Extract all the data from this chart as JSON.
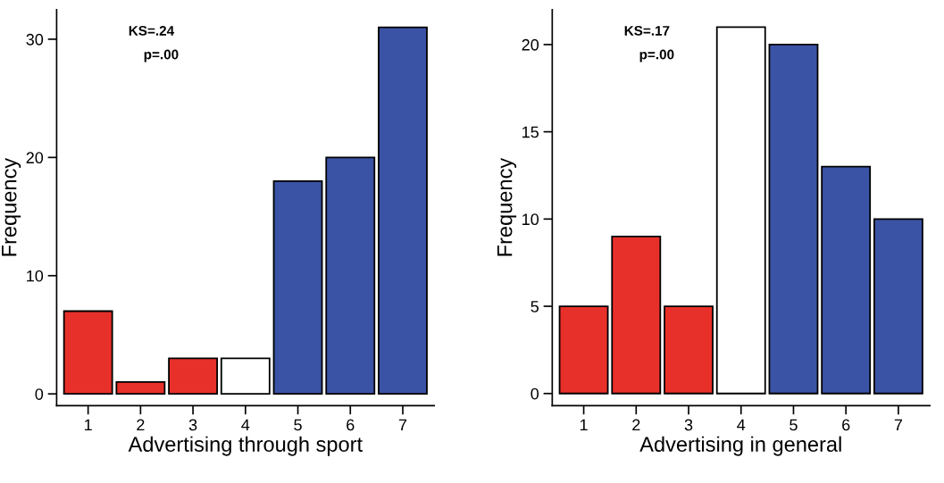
{
  "chart_data": [
    {
      "type": "bar",
      "xlabel": "Advertising through sport",
      "ylabel": "Frequency",
      "categories": [
        "1",
        "2",
        "3",
        "4",
        "5",
        "6",
        "7"
      ],
      "values": [
        7,
        1,
        3,
        3,
        18,
        20,
        31
      ],
      "colors": [
        "#e8302a",
        "#e8302a",
        "#e8302a",
        "#ffffff",
        "#3b53a5",
        "#3b53a5",
        "#3b53a5"
      ],
      "ylim": [
        -1,
        32.5
      ],
      "yticks": [
        0,
        10,
        20,
        30
      ],
      "grid": false,
      "annotations": [
        "KS=.24",
        "p=.00"
      ]
    },
    {
      "type": "bar",
      "xlabel": "Advertising in general",
      "ylabel": "Frequency",
      "categories": [
        "1",
        "2",
        "3",
        "4",
        "5",
        "6",
        "7"
      ],
      "values": [
        5,
        9,
        5,
        21,
        20,
        13,
        10
      ],
      "colors": [
        "#e8302a",
        "#e8302a",
        "#e8302a",
        "#ffffff",
        "#3b53a5",
        "#3b53a5",
        "#3b53a5"
      ],
      "ylim": [
        -0.7,
        22
      ],
      "yticks": [
        0,
        5,
        10,
        15,
        20
      ],
      "grid": false,
      "annotations": [
        "KS=.17",
        "p=.00"
      ]
    }
  ]
}
